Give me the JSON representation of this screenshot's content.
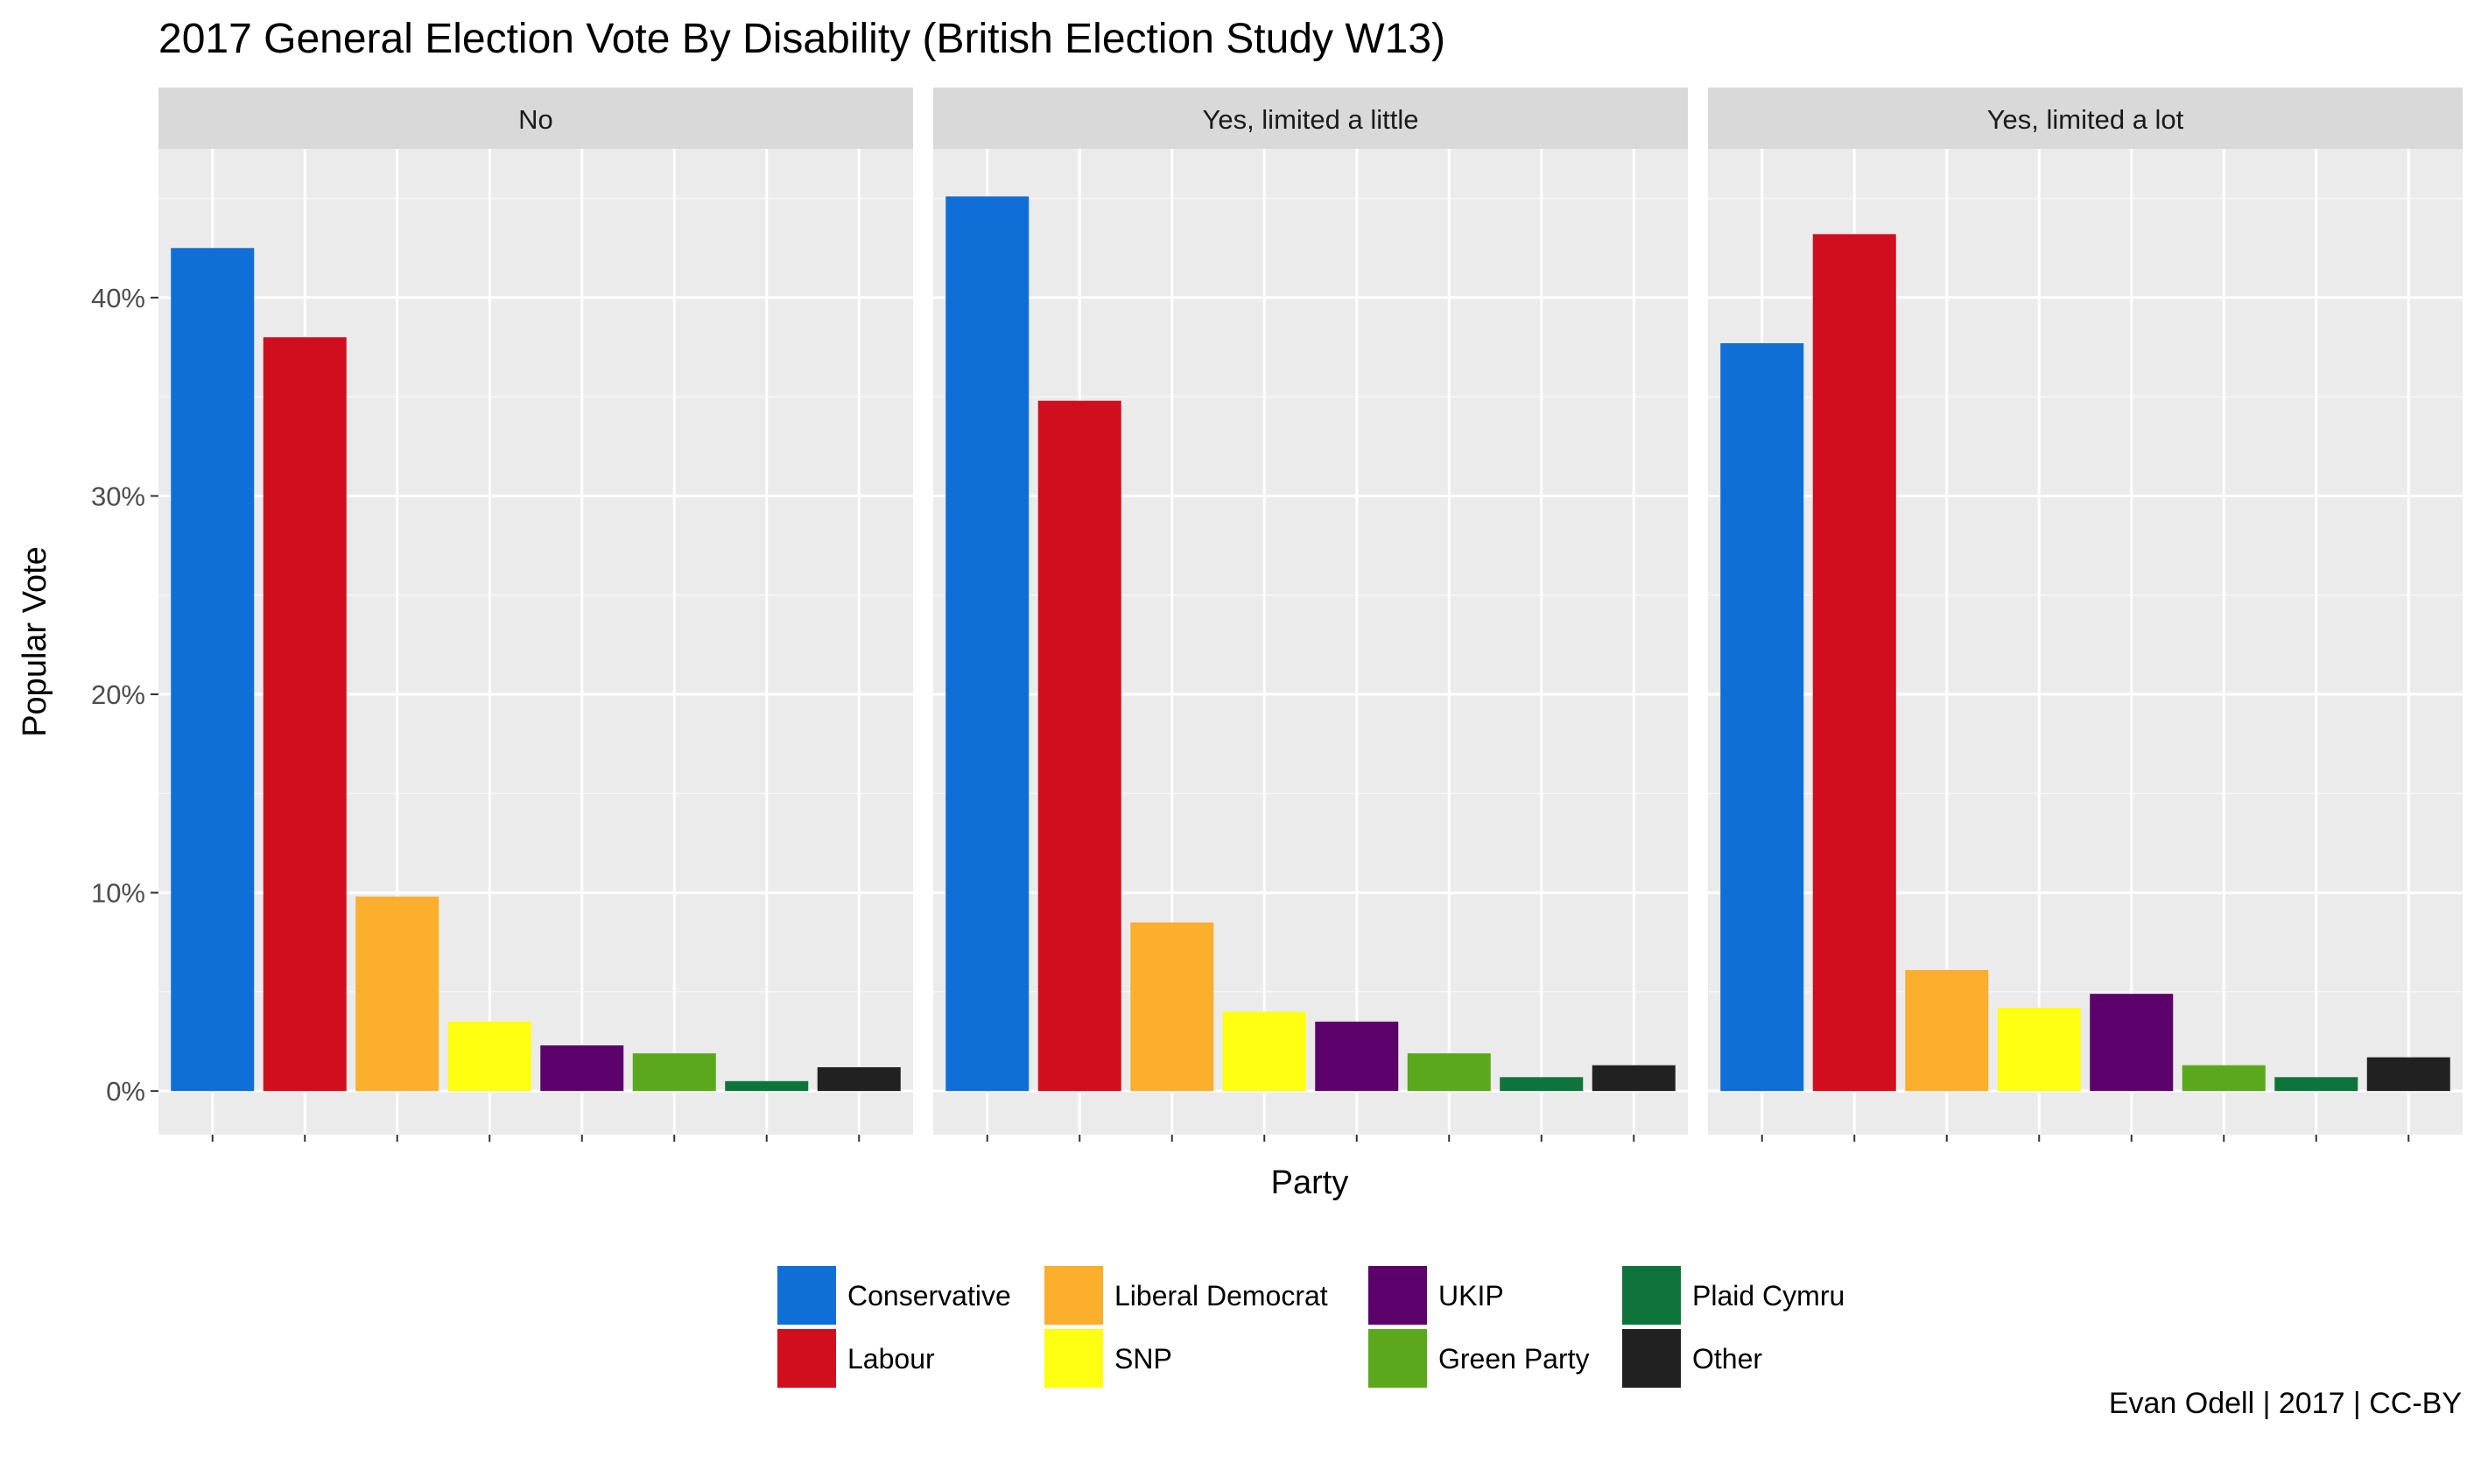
{
  "chart_data": {
    "type": "bar",
    "title": "2017 General Election Vote By Disability (British Election Study W13)",
    "xlabel": "Party",
    "ylabel": "Popular Vote",
    "ylim": [
      -0.022,
      0.475
    ],
    "y_ticks": [
      0,
      0.1,
      0.2,
      0.3,
      0.4
    ],
    "y_tick_labels": [
      "0%",
      "10%",
      "20%",
      "30%",
      "40%"
    ],
    "grid": true,
    "legend_position": "bottom",
    "categories": [
      "Conservative",
      "Labour",
      "Liberal Democrat",
      "SNP",
      "UKIP",
      "Green Party",
      "Plaid Cymru",
      "Other"
    ],
    "colors": {
      "Conservative": "#0F6FD6",
      "Labour": "#D10E1E",
      "Liberal Democrat": "#FCAE2D",
      "SNP": "#FFFF12",
      "UKIP": "#5C006B",
      "Green Party": "#5BA81C",
      "Plaid Cymru": "#0E743B",
      "Other": "#212121"
    },
    "panels": [
      {
        "name": "No",
        "values": [
          0.425,
          0.38,
          0.098,
          0.035,
          0.023,
          0.019,
          0.005,
          0.012
        ]
      },
      {
        "name": "Yes, limited a little",
        "values": [
          0.451,
          0.348,
          0.085,
          0.04,
          0.035,
          0.019,
          0.007,
          0.013
        ]
      },
      {
        "name": "Yes, limited a lot",
        "values": [
          0.377,
          0.432,
          0.061,
          0.042,
          0.049,
          0.013,
          0.007,
          0.017
        ]
      }
    ],
    "caption": "Evan Odell | 2017 | CC-BY"
  }
}
